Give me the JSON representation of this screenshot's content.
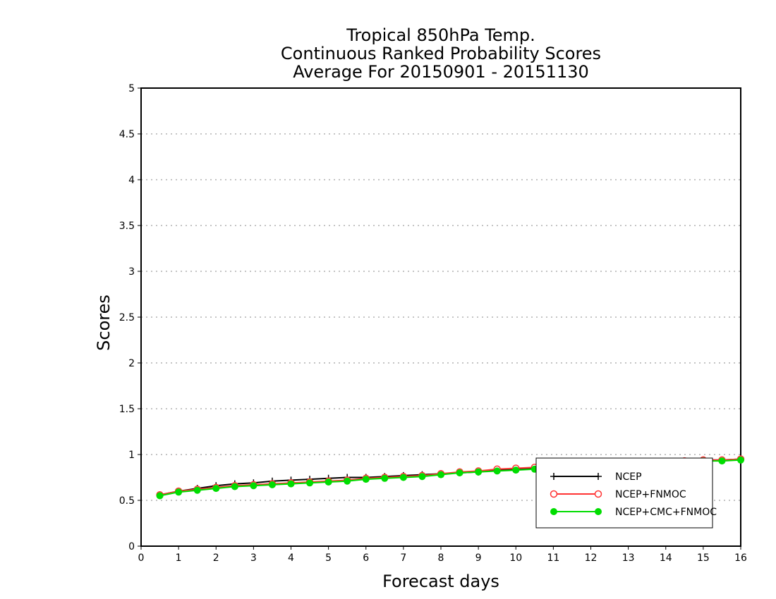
{
  "chart_data": {
    "type": "line",
    "title_lines": [
      "Tropical 850hPa Temp.",
      "Continuous Ranked Probability Scores",
      "Average For 20150901 - 20151130"
    ],
    "xlabel": "Forecast days",
    "ylabel": "Scores",
    "xlim": [
      0,
      16
    ],
    "ylim": [
      0,
      5
    ],
    "xticks": [
      "0",
      "1",
      "2",
      "3",
      "4",
      "5",
      "6",
      "7",
      "8",
      "9",
      "10",
      "11",
      "12",
      "13",
      "14",
      "15",
      "16"
    ],
    "yticks": [
      "0",
      "0.5",
      "1",
      "1.5",
      "2",
      "2.5",
      "3",
      "3.5",
      "4",
      "4.5",
      "5"
    ],
    "grid": "dotted horizontal",
    "legend_position": "bottom-right",
    "x": [
      0.5,
      1.0,
      1.5,
      2.0,
      2.5,
      3.0,
      3.5,
      4.0,
      4.5,
      5.0,
      5.5,
      6.0,
      6.5,
      7.0,
      7.5,
      8.0,
      8.5,
      9.0,
      9.5,
      10.0,
      10.5,
      11.0,
      11.5,
      12.0,
      12.5,
      13.0,
      13.5,
      14.0,
      14.5,
      15.0,
      15.5,
      16.0
    ],
    "series": [
      {
        "name": "NCEP",
        "color": "#000000",
        "marker": "plus",
        "values": [
          0.56,
          0.6,
          0.63,
          0.66,
          0.68,
          0.69,
          0.71,
          0.72,
          0.73,
          0.74,
          0.75,
          0.75,
          0.76,
          0.77,
          0.78,
          0.79,
          0.8,
          0.81,
          0.83,
          0.84,
          0.85,
          0.86,
          0.87,
          0.88,
          0.89,
          0.9,
          0.91,
          0.92,
          0.93,
          0.94,
          0.94,
          0.95
        ]
      },
      {
        "name": "NCEP+FNMOC",
        "color": "#ff3333",
        "marker": "open-circle",
        "values": [
          0.56,
          0.6,
          0.62,
          0.64,
          0.66,
          0.67,
          0.68,
          0.69,
          0.7,
          0.71,
          0.72,
          0.74,
          0.75,
          0.76,
          0.77,
          0.79,
          0.81,
          0.82,
          0.84,
          0.85,
          0.86,
          0.87,
          0.88,
          0.89,
          0.9,
          0.9,
          0.91,
          0.92,
          0.93,
          0.94,
          0.94,
          0.95
        ]
      },
      {
        "name": "NCEP+CMC+FNMOC",
        "color": "#00dd00",
        "marker": "filled-circle",
        "values": [
          0.55,
          0.59,
          0.61,
          0.63,
          0.65,
          0.66,
          0.67,
          0.68,
          0.69,
          0.7,
          0.71,
          0.73,
          0.74,
          0.75,
          0.76,
          0.78,
          0.8,
          0.81,
          0.82,
          0.83,
          0.84,
          0.85,
          0.86,
          0.87,
          0.88,
          0.89,
          0.9,
          0.91,
          0.92,
          0.93,
          0.93,
          0.94
        ]
      }
    ]
  }
}
